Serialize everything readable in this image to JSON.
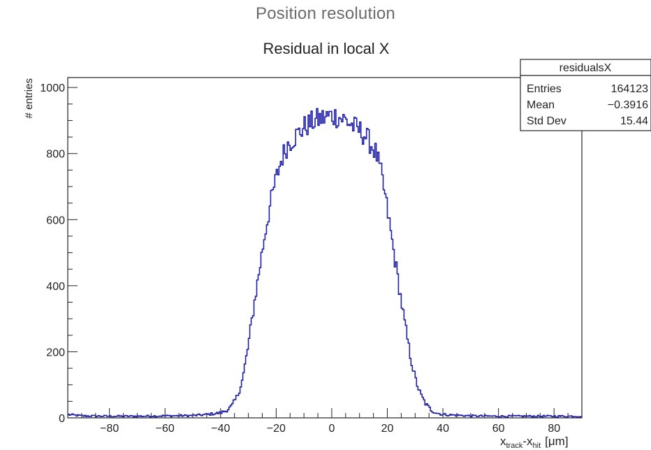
{
  "page": {
    "title": "Position resolution"
  },
  "chart_data": {
    "type": "histogram",
    "title": "Residual in local X",
    "xlabel": {
      "main1": "x",
      "sub1": "track",
      "dash": "-",
      "main2": "x",
      "sub2": "hit",
      "unit": "[μm]"
    },
    "ylabel": "# entries",
    "xlim": [
      -95,
      90
    ],
    "ylim": [
      0,
      1030
    ],
    "x_ticks": [
      -80,
      -60,
      -40,
      -20,
      0,
      20,
      40,
      60,
      80
    ],
    "y_ticks": [
      0,
      200,
      400,
      600,
      800,
      1000
    ],
    "line_color": "#1f1fa6",
    "stats_box": {
      "name": "residualsX",
      "rows": [
        {
          "label": "Entries",
          "value": "164123"
        },
        {
          "label": "Mean",
          "value": "−0.3916"
        },
        {
          "label": "Std Dev",
          "value": "15.44"
        }
      ]
    },
    "series": [
      {
        "x": [
          -95,
          -90,
          -80,
          -70,
          -60,
          -50,
          -45,
          -40,
          -38,
          -36,
          -34,
          -32,
          -30,
          -28,
          -26,
          -24,
          -22,
          -20,
          -18,
          -16,
          -14,
          -12,
          -10,
          -8,
          -6,
          -4,
          -2,
          0,
          2,
          4,
          6,
          8,
          10,
          12,
          14,
          16,
          18,
          20,
          22,
          24,
          26,
          28,
          30,
          32,
          34,
          36,
          38,
          40,
          45,
          50,
          60,
          70,
          80,
          90
        ],
        "y": [
          10,
          6,
          5,
          5,
          6,
          7,
          10,
          15,
          22,
          35,
          65,
          120,
          220,
          340,
          450,
          560,
          650,
          725,
          785,
          825,
          845,
          860,
          880,
          890,
          900,
          905,
          910,
          915,
          912,
          905,
          895,
          880,
          870,
          855,
          830,
          800,
          730,
          630,
          520,
          410,
          300,
          200,
          120,
          70,
          40,
          22,
          14,
          10,
          8,
          6,
          5,
          5,
          5,
          5
        ]
      }
    ]
  }
}
